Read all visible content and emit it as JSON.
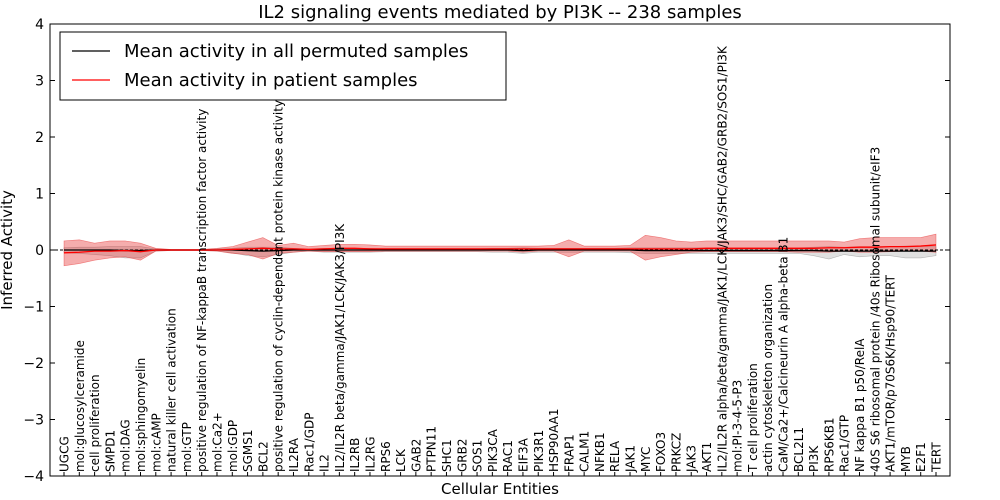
{
  "chart_data": {
    "type": "line",
    "title": "IL2 signaling events mediated by PI3K -- 238 samples",
    "xlabel": "Cellular Entities",
    "ylabel": "Inferred Activity",
    "ylim": [
      -4,
      4
    ],
    "yticks": [
      "−4",
      "−3",
      "−2",
      "−1",
      "0",
      "1",
      "2",
      "3",
      "4"
    ],
    "yticks_values": [
      -4,
      -3,
      -2,
      -1,
      0,
      1,
      2,
      3,
      4
    ],
    "legend": {
      "position": "top-left",
      "entries": [
        {
          "label": "Mean activity in all permuted samples",
          "color": "#000000"
        },
        {
          "label": "Mean activity in patient samples",
          "color": "#ff0000"
        }
      ]
    },
    "categories": [
      "UGCG",
      "mol:glucosylceramide",
      "cell proliferation",
      "SMPD1",
      "mol:DAG",
      "mol:sphingomyelin",
      "mol:cAMP",
      "natural killer cell activation",
      "mol:GTP",
      "positive regulation of NF-kappaB transcription factor activity",
      "mol:Ca2+",
      "mol:GDP",
      "SGMS1",
      "BCL2",
      "positive regulation of cyclin-dependent protein kinase activity",
      "IL2RA",
      "Rac1/GDP",
      "IL2",
      "IL2/IL2R beta/gamma/JAK1/LCK/JAK3/PI3K",
      "IL2RB",
      "IL2RG",
      "RPS6",
      "LCK",
      "GAB2",
      "PTPN11",
      "SHC1",
      "GRB2",
      "SOS1",
      "PIK3CA",
      "RAC1",
      "EIF3A",
      "PIK3R1",
      "HSP90AA1",
      "FRAP1",
      "CALM1",
      "NFKB1",
      "RELA",
      "JAK1",
      "MYC",
      "FOXO3",
      "PRKCZ",
      "JAK3",
      "AKT1",
      "IL2/IL2R alpha/beta/gamma/JAK1/LCK/JAK3/SHC/GAB2/GRB2/SOS1/PI3K",
      "mol:PI-3-4-5-P3",
      "T cell proliferation",
      "actin cytoskeleton organization",
      "CaM/Ca2+/Calcineurin A alpha-beta B1",
      "BCL2L1",
      "PI3K",
      "RPS6KB1",
      "Rac1/GTP",
      "NF kappa B1 p50/RelA",
      "40S S6 ribosomal protein /40s Ribosomal subunit/eIF3",
      "AKT1/mTOR/p70S6K/Hsp90/TERT",
      "MYB",
      "E2F1",
      "TERT"
    ],
    "series": [
      {
        "name": "Mean activity in all permuted samples",
        "color": "#000000",
        "values": [
          0.0,
          0.0,
          0.0,
          0.0,
          -0.01,
          -0.01,
          0.0,
          0.0,
          0.0,
          0.0,
          0.0,
          0.0,
          -0.01,
          -0.02,
          -0.01,
          0.0,
          0.0,
          0.0,
          0.0,
          0.0,
          0.0,
          0.0,
          0.0,
          0.0,
          0.0,
          0.0,
          0.0,
          0.0,
          0.0,
          0.0,
          -0.01,
          0.0,
          0.0,
          0.0,
          0.0,
          0.0,
          0.0,
          0.0,
          -0.01,
          -0.01,
          -0.01,
          -0.01,
          -0.01,
          -0.01,
          -0.01,
          -0.01,
          -0.01,
          -0.01,
          -0.01,
          -0.01,
          -0.02,
          -0.02,
          -0.02,
          -0.02,
          -0.02,
          -0.02,
          -0.02,
          -0.02
        ],
        "band_lower": [
          -0.05,
          -0.06,
          -0.08,
          -0.1,
          -0.14,
          -0.14,
          -0.02,
          -0.01,
          -0.01,
          -0.01,
          -0.02,
          -0.05,
          -0.1,
          -0.12,
          -0.08,
          -0.04,
          -0.02,
          -0.04,
          -0.04,
          -0.04,
          -0.04,
          -0.03,
          -0.03,
          -0.03,
          -0.03,
          -0.03,
          -0.03,
          -0.03,
          -0.04,
          -0.04,
          -0.06,
          -0.04,
          -0.04,
          -0.04,
          -0.04,
          -0.04,
          -0.04,
          -0.05,
          -0.06,
          -0.06,
          -0.06,
          -0.06,
          -0.06,
          -0.06,
          -0.06,
          -0.06,
          -0.06,
          -0.06,
          -0.06,
          -0.1,
          -0.16,
          -0.08,
          -0.12,
          -0.1,
          -0.1,
          -0.14,
          -0.14,
          -0.1
        ],
        "band_upper": [
          0.04,
          0.05,
          0.05,
          0.06,
          0.06,
          0.06,
          0.02,
          0.01,
          0.01,
          0.01,
          0.02,
          0.03,
          0.05,
          0.05,
          0.05,
          0.03,
          0.02,
          0.03,
          0.03,
          0.03,
          0.03,
          0.02,
          0.02,
          0.02,
          0.02,
          0.02,
          0.02,
          0.02,
          0.03,
          0.03,
          0.04,
          0.03,
          0.03,
          0.03,
          0.03,
          0.03,
          0.03,
          0.04,
          0.04,
          0.04,
          0.04,
          0.04,
          0.04,
          0.04,
          0.04,
          0.04,
          0.04,
          0.04,
          0.04,
          0.05,
          0.06,
          0.05,
          0.06,
          0.06,
          0.06,
          0.07,
          0.07,
          0.06
        ]
      },
      {
        "name": "Mean activity in patient samples",
        "color": "#ff0000",
        "values": [
          -0.05,
          -0.04,
          -0.02,
          -0.02,
          -0.01,
          -0.03,
          0.0,
          0.0,
          0.0,
          0.0,
          0.0,
          0.01,
          0.02,
          0.03,
          0.02,
          0.02,
          0.01,
          0.02,
          0.03,
          0.03,
          0.02,
          0.02,
          0.02,
          0.02,
          0.02,
          0.02,
          0.02,
          0.02,
          0.02,
          0.02,
          0.02,
          0.02,
          0.02,
          0.02,
          0.02,
          0.02,
          0.02,
          0.02,
          0.02,
          0.02,
          0.02,
          0.02,
          0.03,
          0.03,
          0.03,
          0.03,
          0.03,
          0.03,
          0.03,
          0.03,
          0.04,
          0.04,
          0.05,
          0.05,
          0.06,
          0.06,
          0.07,
          0.09
        ],
        "band_lower": [
          -0.28,
          -0.24,
          -0.18,
          -0.14,
          -0.12,
          -0.18,
          -0.02,
          -0.01,
          -0.01,
          -0.01,
          -0.02,
          -0.06,
          -0.08,
          -0.16,
          -0.06,
          -0.04,
          -0.02,
          -0.03,
          -0.03,
          -0.03,
          -0.03,
          -0.02,
          -0.02,
          -0.02,
          -0.02,
          -0.02,
          -0.02,
          -0.02,
          -0.02,
          -0.02,
          -0.04,
          -0.02,
          -0.02,
          -0.12,
          -0.02,
          -0.02,
          -0.02,
          -0.02,
          -0.18,
          -0.12,
          -0.08,
          -0.04,
          -0.03,
          -0.03,
          -0.03,
          -0.03,
          -0.03,
          -0.03,
          -0.04,
          -0.04,
          -0.04,
          -0.02,
          -0.04,
          -0.04,
          -0.03,
          -0.02,
          -0.02,
          -0.04
        ],
        "band_upper": [
          0.16,
          0.18,
          0.12,
          0.16,
          0.16,
          0.12,
          0.03,
          0.01,
          0.01,
          0.01,
          0.03,
          0.06,
          0.14,
          0.22,
          0.08,
          0.12,
          0.06,
          0.08,
          0.1,
          0.1,
          0.09,
          0.07,
          0.07,
          0.07,
          0.07,
          0.07,
          0.07,
          0.07,
          0.07,
          0.07,
          0.07,
          0.07,
          0.08,
          0.18,
          0.07,
          0.07,
          0.07,
          0.08,
          0.26,
          0.22,
          0.16,
          0.14,
          0.16,
          0.16,
          0.16,
          0.16,
          0.16,
          0.16,
          0.16,
          0.16,
          0.16,
          0.14,
          0.2,
          0.22,
          0.22,
          0.22,
          0.22,
          0.28
        ]
      }
    ]
  }
}
